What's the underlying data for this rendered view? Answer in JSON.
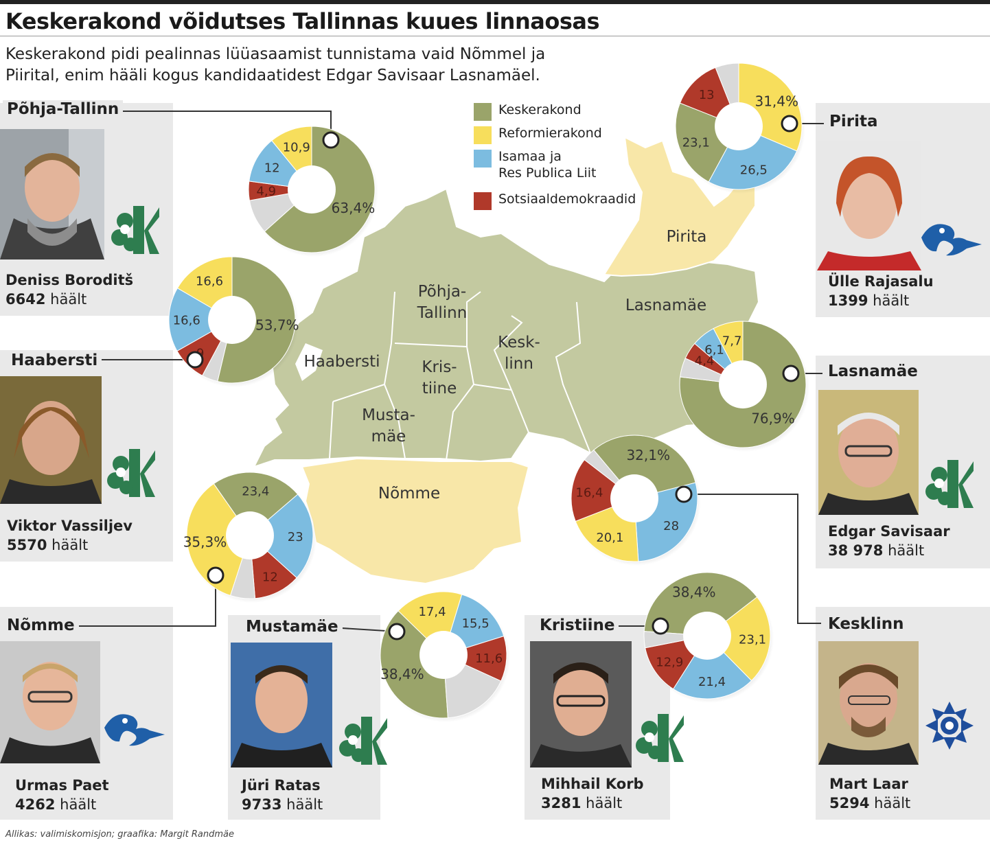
{
  "title": "Keskerakond võidutses Tallinnas kuues linnaosas",
  "subtitle": "Keskerakond pidi pealinnas lüüasaamist tunnistama vaid Nõmmel ja Piirital, enim hääli kogus kandidaatidest Edgar Savisaar Lasnamäel.",
  "source": "Allikas: valimiskomisjon; graafika: Margit Randmäe",
  "colors": {
    "Keskerakond": "#9aa46a",
    "Reformierakond": "#f7de5c",
    "Isamaa": "#7cbce0",
    "Sotsiaaldemokraadid": "#b0392a",
    "other": "#d9d9d9",
    "map_green": "#c3c9a0",
    "map_yellow": "#f8e7a8"
  },
  "legend": [
    {
      "label": "Keskerakond",
      "color": "#9aa46a"
    },
    {
      "label": "Reformierakond",
      "color": "#f7de5c"
    },
    {
      "label": "Isamaa ja\nRes Publica Liit",
      "color": "#7cbce0"
    },
    {
      "label": "Sotsiaaldemokraadid",
      "color": "#b0392a"
    }
  ],
  "map_labels": [
    {
      "name": "Pirita",
      "id": "pirita"
    },
    {
      "name": "Põhja-\nTallinn",
      "id": "pohja"
    },
    {
      "name": "Lasnamäe",
      "id": "lasnamae"
    },
    {
      "name": "Kesk-\nlinn",
      "id": "kesklinn"
    },
    {
      "name": "Haabersti",
      "id": "haabersti"
    },
    {
      "name": "Kris-\ntiine",
      "id": "kristiine"
    },
    {
      "name": "Musta-\nmäe",
      "id": "mustamae"
    },
    {
      "name": "Nõmme",
      "id": "nomme"
    }
  ],
  "chart_data": {
    "type": "pie",
    "title": "Keskerakond võidutses Tallinnas kuues linnaosas",
    "series_names": [
      "Keskerakond",
      "Reformierakond",
      "Isamaa ja Res Publica Liit",
      "Sotsiaaldemokraadid"
    ],
    "districts": [
      {
        "district": "Põhja-Tallinn",
        "Keskerakond": 63.4,
        "Reformierakond": 10.9,
        "Isamaa": 12,
        "Sotsiaaldemokraadid": 4.9,
        "labels": {
          "Keskerakond": "63,4%",
          "Reformierakond": "10,9",
          "Isamaa": "12",
          "Sotsiaaldemokraadid": "4,9"
        },
        "candidate": "Deniss Boroditš",
        "votes": "6642",
        "party_logo": "keskerakond-logo"
      },
      {
        "district": "Haabersti",
        "Keskerakond": 53.7,
        "Reformierakond": 16.6,
        "Isamaa": 16.6,
        "Sotsiaaldemokraadid": 9,
        "labels": {
          "Keskerakond": "53,7%",
          "Reformierakond": "16,6",
          "Isamaa": "16,6",
          "Sotsiaaldemokraadid": "9"
        },
        "candidate": "Viktor Vassiljev",
        "votes": "5570",
        "party_logo": "keskerakond-logo"
      },
      {
        "district": "Nõmme",
        "Keskerakond": 23.4,
        "Reformierakond": 35.3,
        "Isamaa": 23,
        "Sotsiaaldemokraadid": 12,
        "labels": {
          "Keskerakond": "23,4",
          "Reformierakond": "35,3%",
          "Isamaa": "23",
          "Sotsiaaldemokraadid": "12"
        },
        "candidate": "Urmas Paet",
        "votes": "4262",
        "party_logo": "reformierakond-logo"
      },
      {
        "district": "Mustamäe",
        "Keskerakond": 38.4,
        "Reformierakond": 17.4,
        "Isamaa": 15.5,
        "Sotsiaaldemokraadid": 11.6,
        "labels": {
          "Keskerakond": "38,4%",
          "Reformierakond": "17,4",
          "Isamaa": "15,5",
          "Sotsiaaldemokraadid": "11,6"
        },
        "candidate": "Jüri Ratas",
        "votes": "9733",
        "party_logo": "keskerakond-logo"
      },
      {
        "district": "Kristiine",
        "Keskerakond": 38.4,
        "Reformierakond": 23.1,
        "Isamaa": 21.4,
        "Sotsiaaldemokraadid": 12.9,
        "labels": {
          "Keskerakond": "38,4%",
          "Reformierakond": "23,1",
          "Isamaa": "21,4",
          "Sotsiaaldemokraadid": "12,9"
        },
        "candidate": "Mihhail Korb",
        "votes": "3281",
        "party_logo": "keskerakond-logo"
      },
      {
        "district": "Kesklinn",
        "Keskerakond": 32.1,
        "Reformierakond": 20.1,
        "Isamaa": 28,
        "Sotsiaaldemokraadid": 16.4,
        "labels": {
          "Keskerakond": "32,1%",
          "Reformierakond": "20,1",
          "Isamaa": "28",
          "Sotsiaaldemokraadid": "16,4"
        },
        "candidate": "Mart Laar",
        "votes": "5294",
        "party_logo": "isamaa-logo"
      },
      {
        "district": "Lasnamäe",
        "Keskerakond": 76.9,
        "Reformierakond": 7.7,
        "Isamaa": 6.1,
        "Sotsiaaldemokraadid": 4.4,
        "labels": {
          "Keskerakond": "76,9%",
          "Reformierakond": "7,7",
          "Isamaa": "6,1",
          "Sotsiaaldemokraadid": "4,4"
        },
        "candidate": "Edgar Savisaar",
        "votes": "38 978",
        "party_logo": "keskerakond-logo"
      },
      {
        "district": "Pirita",
        "Keskerakond": 23.1,
        "Reformierakond": 31.4,
        "Isamaa": 26.5,
        "Sotsiaaldemokraadid": 13,
        "labels": {
          "Keskerakond": "23,1",
          "Reformierakond": "31,4%",
          "Isamaa": "26,5",
          "Sotsiaaldemokraadid": "13"
        },
        "candidate": "Ülle Rajasalu",
        "votes": "1399",
        "party_logo": "reformierakond-logo"
      }
    ]
  },
  "votes_suffix": "häält"
}
